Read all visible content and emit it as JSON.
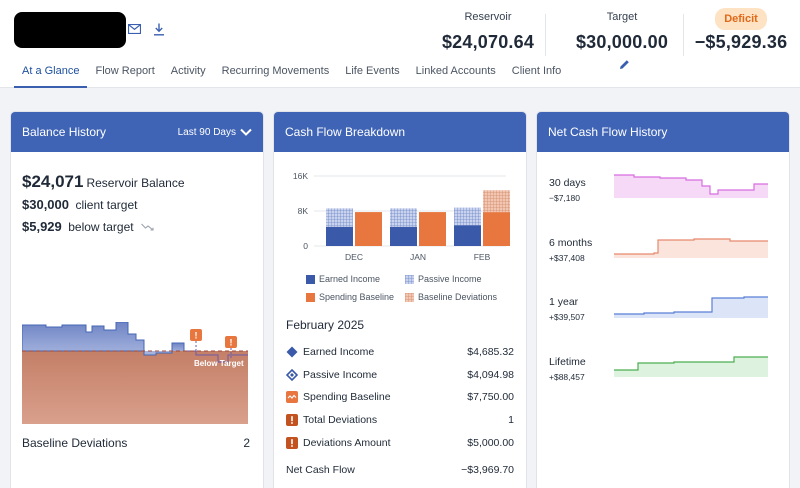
{
  "header": {
    "mail_icon": "mail-icon",
    "download_icon": "download-icon",
    "reservoir_label": "Reservoir",
    "reservoir_value": "$24,070.64",
    "target_label": "Target",
    "target_value": "$30,000.00",
    "edit_icon": "pencil-icon",
    "deficit_badge": "Deficit",
    "deficit_value": "−$5,929.36"
  },
  "tabs": [
    {
      "label": "At a Glance",
      "active": true
    },
    {
      "label": "Flow Report"
    },
    {
      "label": "Activity"
    },
    {
      "label": "Recurring Movements"
    },
    {
      "label": "Life Events"
    },
    {
      "label": "Linked Accounts"
    },
    {
      "label": "Client Info"
    }
  ],
  "balance_history": {
    "title": "Balance History",
    "range": "Last 90 Days",
    "balance_amount": "$24,071",
    "balance_text": "Reservoir Balance",
    "target_amount": "$30,000",
    "target_text": "client target",
    "below_amount": "$5,929",
    "below_text": "below target",
    "chart_marker": "!",
    "below_label": "Below Target",
    "footer_label": "Baseline Deviations",
    "footer_value": "2"
  },
  "cash_flow": {
    "title": "Cash Flow Breakdown",
    "legend": [
      "Earned Income",
      "Passive Income",
      "Spending Baseline",
      "Baseline Deviations"
    ],
    "month": "February 2025",
    "items": [
      {
        "label": "Earned Income",
        "value": "$4,685.32",
        "icon": "diamond-icon"
      },
      {
        "label": "Passive Income",
        "value": "$4,094.98",
        "icon": "diamond-outline-icon"
      },
      {
        "label": "Spending Baseline",
        "value": "$7,750.00",
        "icon": "wave-icon"
      },
      {
        "label": "Total Deviations",
        "value": "1",
        "icon": "alert-icon"
      },
      {
        "label": "Deviations Amount",
        "value": "$5,000.00",
        "icon": "alert-icon"
      }
    ],
    "net_label": "Net Cash Flow",
    "net_value": "−$3,969.70"
  },
  "net_history": {
    "title": "Net Cash Flow History",
    "rows": [
      {
        "label": "30 days",
        "value": "−$7,180",
        "color": "#d86ee0"
      },
      {
        "label": "6 months",
        "value": "+$37,408",
        "color": "#e7896d"
      },
      {
        "label": "1 year",
        "value": "+$39,507",
        "color": "#5a7fd6"
      },
      {
        "label": "Lifetime",
        "value": "+$88,457",
        "color": "#4caf50"
      }
    ]
  },
  "colors": {
    "header_blue": "#3f64b5",
    "earned": "#3a5aa9",
    "passive": "#8fa3d6",
    "spending": "#e8763f",
    "deviations": "#e2a383",
    "deficit": "#e06a19"
  },
  "chart_data": [
    {
      "type": "bar",
      "categories": [
        "DEC",
        "JAN",
        "FEB"
      ],
      "yticks": [
        "16K",
        "8K",
        "0"
      ],
      "ylim": [
        0,
        16000
      ],
      "series": [
        {
          "name": "Earned Income",
          "stack": "income",
          "values": [
            4400,
            4400,
            4685.32
          ]
        },
        {
          "name": "Passive Income",
          "stack": "income",
          "values": [
            4200,
            4200,
            4094.98
          ]
        },
        {
          "name": "Spending Baseline",
          "stack": "spending",
          "values": [
            7750,
            7750,
            7750
          ]
        },
        {
          "name": "Baseline Deviations",
          "stack": "spending",
          "values": [
            0,
            0,
            5000
          ]
        }
      ]
    }
  ]
}
